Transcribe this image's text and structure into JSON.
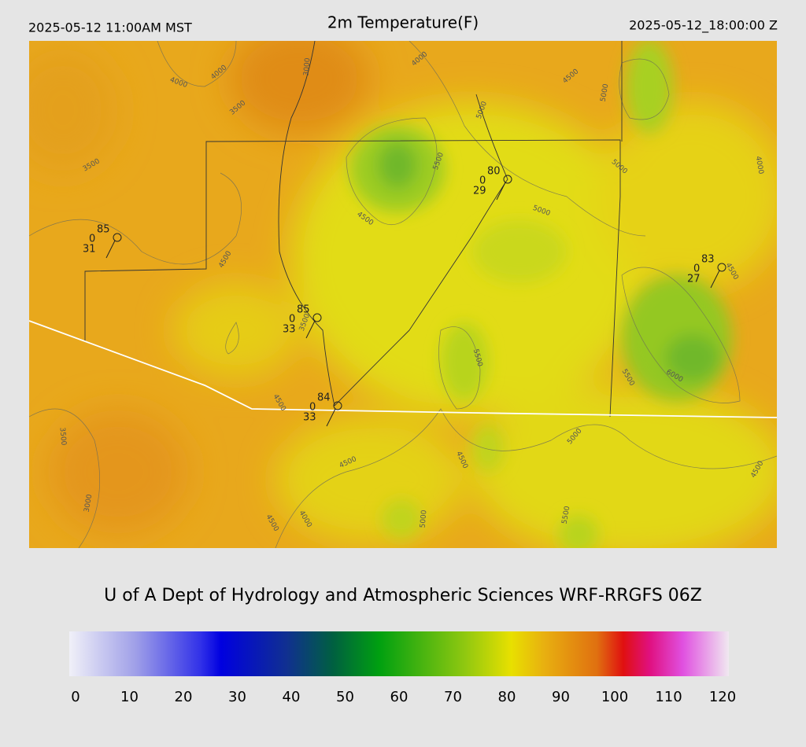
{
  "header": {
    "local_time": "2025-05-12 11:00AM MST",
    "title": "2m Temperature(F)",
    "valid_time": "2025-05-12_18:00:00 Z"
  },
  "stations": [
    {
      "temperature": 85,
      "wind": 0,
      "dewpoint": 31
    },
    {
      "temperature": 80,
      "wind": 0,
      "dewpoint": 29
    },
    {
      "temperature": 83,
      "wind": 0,
      "dewpoint": 27
    },
    {
      "temperature": 85,
      "wind": 0,
      "dewpoint": 33
    },
    {
      "temperature": 84,
      "wind": 0,
      "dewpoint": 33
    }
  ],
  "contour_labels": [
    4000,
    4000,
    3500,
    3000,
    4000,
    4500,
    5000,
    5000,
    5500,
    3500,
    4500,
    5000,
    5000,
    4000,
    4500,
    4500,
    3500,
    5500,
    5500,
    6000,
    4500,
    3500,
    4500,
    4500,
    5000,
    4500,
    3000,
    4000,
    4500,
    5000,
    5500
  ],
  "credit": "U of A Dept of Hydrology and Atmospheric Sciences WRF-RRGFS 06Z",
  "colorbar": {
    "range": [
      0,
      120
    ],
    "ticks": [
      0,
      10,
      20,
      30,
      40,
      50,
      60,
      70,
      80,
      90,
      100,
      110,
      120
    ]
  }
}
